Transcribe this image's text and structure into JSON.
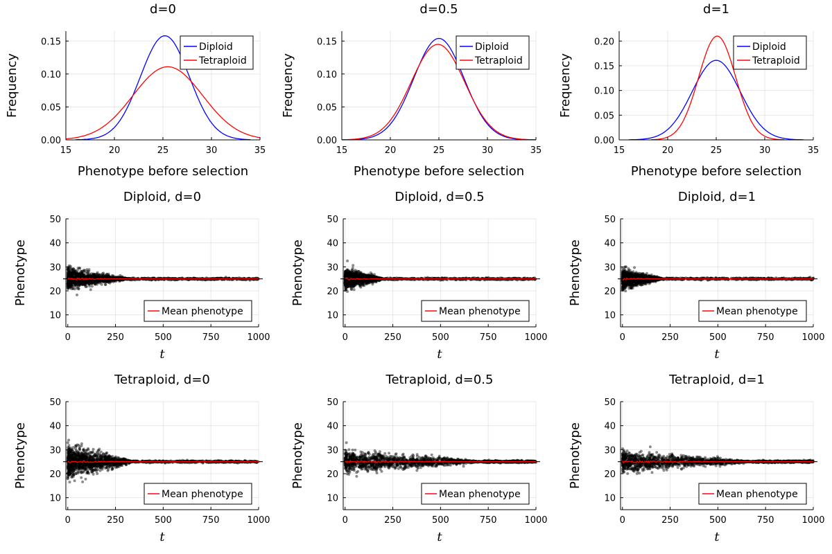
{
  "chart_data": [
    {
      "type": "line",
      "title": "d=0",
      "xlabel": "Phenotype before selection",
      "ylabel": "Frequency",
      "xlim": [
        15,
        35
      ],
      "ylim": [
        0,
        0.165
      ],
      "xticks": [
        "15",
        "20",
        "25",
        "30",
        "35"
      ],
      "yticks": [
        "0.00",
        "0.05",
        "0.10",
        "0.15"
      ],
      "grid": true,
      "legend_position": "top-right",
      "series": [
        {
          "name": "Diploid",
          "color": "#0000ff",
          "mean": 25.2,
          "peak": 0.158,
          "range": [
            16,
            34
          ]
        },
        {
          "name": "Tetraploid",
          "color": "#ff0000",
          "mean": 25.5,
          "peak": 0.111,
          "range": [
            15,
            35
          ]
        }
      ]
    },
    {
      "type": "line",
      "title": "d=0.5",
      "xlabel": "Phenotype before selection",
      "ylabel": "Frequency",
      "xlim": [
        15,
        35
      ],
      "ylim": [
        0,
        0.165
      ],
      "xticks": [
        "15",
        "20",
        "25",
        "30",
        "35"
      ],
      "yticks": [
        "0.00",
        "0.05",
        "0.10",
        "0.15"
      ],
      "grid": true,
      "legend_position": "top-right",
      "series": [
        {
          "name": "Diploid",
          "color": "#0000ff",
          "mean": 25.0,
          "peak": 0.154,
          "range": [
            15,
            35
          ]
        },
        {
          "name": "Tetraploid",
          "color": "#ff0000",
          "mean": 24.9,
          "peak": 0.145,
          "range": [
            15,
            35
          ]
        }
      ]
    },
    {
      "type": "line",
      "title": "d=1",
      "xlabel": "Phenotype before selection",
      "ylabel": "Frequency",
      "xlim": [
        15,
        35
      ],
      "ylim": [
        0,
        0.22
      ],
      "xticks": [
        "15",
        "20",
        "25",
        "30",
        "35"
      ],
      "yticks": [
        "0.00",
        "0.05",
        "0.10",
        "0.15",
        "0.20"
      ],
      "grid": true,
      "legend_position": "top-right",
      "series": [
        {
          "name": "Diploid",
          "color": "#0000ff",
          "mean": 25.0,
          "peak": 0.161,
          "range": [
            16,
            34
          ]
        },
        {
          "name": "Tetraploid",
          "color": "#ff0000",
          "mean": 25.1,
          "peak": 0.21,
          "range": [
            18.3,
            32
          ]
        }
      ]
    },
    {
      "type": "scatter",
      "title": "Diploid, d=0",
      "xlabel": "t",
      "ylabel": "Phenotype",
      "xlim": [
        -10,
        1000
      ],
      "ylim": [
        5,
        50
      ],
      "xticks": [
        "0",
        "250",
        "500",
        "750",
        "1000"
      ],
      "yticks": [
        "10",
        "20",
        "30",
        "40",
        "50"
      ],
      "grid": true,
      "legend_position": "bottom-right",
      "reference_line": 25,
      "points": {
        "color": "#000000",
        "center": 25,
        "initial_spread": 2.6,
        "convergence_t": 320,
        "outliers": [
          [
            8,
            30.5
          ],
          [
            28,
            21
          ],
          [
            60,
            29.5
          ],
          [
            120,
            20.5
          ]
        ]
      },
      "series": [
        {
          "name": "Mean phenotype",
          "color": "#ff0000",
          "value": 25
        }
      ]
    },
    {
      "type": "scatter",
      "title": "Diploid, d=0.5",
      "xlabel": "t",
      "ylabel": "Phenotype",
      "xlim": [
        -10,
        1000
      ],
      "ylim": [
        5,
        50
      ],
      "xticks": [
        "0",
        "250",
        "500",
        "750",
        "1000"
      ],
      "yticks": [
        "10",
        "20",
        "30",
        "40",
        "50"
      ],
      "grid": true,
      "legend_position": "bottom-right",
      "reference_line": 25,
      "points": {
        "color": "#000000",
        "center": 25,
        "initial_spread": 2.5,
        "convergence_t": 200,
        "outliers": [
          [
            12,
            32.5
          ],
          [
            6,
            20.5
          ],
          [
            40,
            29.5
          ]
        ]
      },
      "series": [
        {
          "name": "Mean phenotype",
          "color": "#ff0000",
          "value": 25
        }
      ]
    },
    {
      "type": "scatter",
      "title": "Diploid, d=1",
      "xlabel": "t",
      "ylabel": "Phenotype",
      "xlim": [
        -10,
        1000
      ],
      "ylim": [
        5,
        50
      ],
      "xticks": [
        "0",
        "250",
        "500",
        "750",
        "1000"
      ],
      "yticks": [
        "10",
        "20",
        "30",
        "40",
        "50"
      ],
      "grid": true,
      "legend_position": "bottom-right",
      "reference_line": 25,
      "points": {
        "color": "#000000",
        "center": 25,
        "initial_spread": 2.5,
        "convergence_t": 210,
        "outliers": [
          [
            15,
            30
          ],
          [
            35,
            21
          ]
        ]
      },
      "series": [
        {
          "name": "Mean phenotype",
          "color": "#ff0000",
          "value": 25
        }
      ]
    },
    {
      "type": "scatter",
      "title": "Tetraploid, d=0",
      "xlabel": "t",
      "ylabel": "Phenotype",
      "xlim": [
        -10,
        1000
      ],
      "ylim": [
        5,
        50
      ],
      "xticks": [
        "0",
        "250",
        "500",
        "750",
        "1000"
      ],
      "yticks": [
        "10",
        "20",
        "30",
        "40",
        "50"
      ],
      "grid": true,
      "legend_position": "bottom-right",
      "reference_line": 25,
      "points": {
        "color": "#000000",
        "center": 25,
        "initial_spread": 4.2,
        "convergence_t": 340,
        "outliers": [
          [
            5,
            34
          ],
          [
            10,
            16.5
          ],
          [
            30,
            31
          ],
          [
            20,
            18.5
          ],
          [
            50,
            32
          ]
        ]
      },
      "series": [
        {
          "name": "Mean phenotype",
          "color": "#ff0000",
          "value": 25
        }
      ]
    },
    {
      "type": "scatter",
      "title": "Tetraploid, d=0.5",
      "xlabel": "t",
      "ylabel": "Phenotype",
      "xlim": [
        -10,
        1000
      ],
      "ylim": [
        5,
        50
      ],
      "xticks": [
        "0",
        "250",
        "500",
        "750",
        "1000"
      ],
      "yticks": [
        "10",
        "20",
        "30",
        "40",
        "50"
      ],
      "grid": true,
      "legend_position": "bottom-right",
      "reference_line": 25,
      "points": {
        "color": "#000000",
        "center": 25,
        "initial_spread": 2.8,
        "convergence_t": 720,
        "outliers": [
          [
            20,
            30
          ],
          [
            60,
            20.5
          ]
        ]
      },
      "series": [
        {
          "name": "Mean phenotype",
          "color": "#ff0000",
          "value": 25
        }
      ]
    },
    {
      "type": "scatter",
      "title": "Tetraploid, d=1",
      "xlabel": "t",
      "ylabel": "Phenotype",
      "xlim": [
        -10,
        1000
      ],
      "ylim": [
        5,
        50
      ],
      "xticks": [
        "0",
        "250",
        "500",
        "750",
        "1000"
      ],
      "yticks": [
        "10",
        "20",
        "30",
        "40",
        "50"
      ],
      "grid": true,
      "legend_position": "bottom-right",
      "reference_line": 25,
      "points": {
        "color": "#000000",
        "center": 25,
        "initial_spread": 2.6,
        "convergence_t": 680,
        "outliers": [
          [
            25,
            29.5
          ],
          [
            80,
            21
          ]
        ]
      },
      "series": [
        {
          "name": "Mean phenotype",
          "color": "#ff0000",
          "value": 25
        }
      ]
    }
  ]
}
